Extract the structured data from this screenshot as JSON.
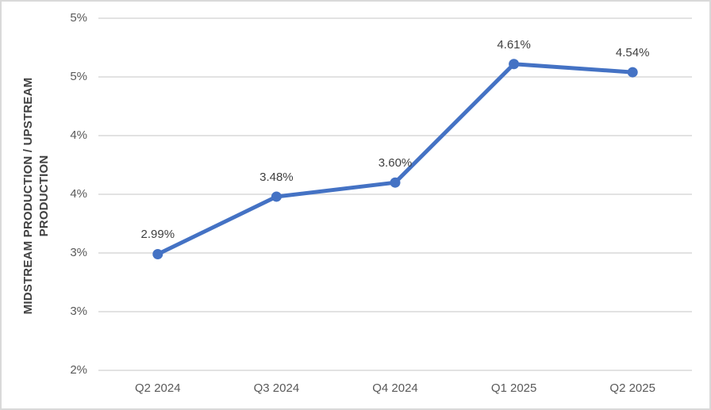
{
  "chart_data": {
    "type": "line",
    "title": "",
    "xlabel": "",
    "ylabel": "MIDSTREAM PRODUCTION / UPSTREAM PRODUCTION",
    "categories": [
      "Q2 2024",
      "Q3 2024",
      "Q4 2024",
      "Q1 2025",
      "Q2 2025"
    ],
    "series": [
      {
        "name": "midstream-upstream-ratio",
        "values": [
          2.99,
          3.48,
          3.6,
          4.61,
          4.54
        ],
        "data_labels": [
          "2.99%",
          "3.48%",
          "3.60%",
          "4.61%",
          "4.54%"
        ]
      }
    ],
    "ylim": [
      2.0,
      5.0
    ],
    "y_ticks": [
      {
        "value": 5.0,
        "label": "5%"
      },
      {
        "value": 4.5,
        "label": "5%"
      },
      {
        "value": 4.0,
        "label": "4%"
      },
      {
        "value": 3.5,
        "label": "4%"
      },
      {
        "value": 3.0,
        "label": "3%"
      },
      {
        "value": 2.5,
        "label": "3%"
      },
      {
        "value": 2.0,
        "label": "2%"
      }
    ],
    "grid": true,
    "legend": "none",
    "colors": {
      "line": "#4472C4",
      "marker": "#4472C4",
      "gridline": "#D9D9D9",
      "axis_line": "#D9D9D9",
      "tick_label": "#595959",
      "data_label": "#404040",
      "axis_title": "#404040",
      "frame_border": "#D9D9D9",
      "background": "#FFFFFF"
    }
  }
}
